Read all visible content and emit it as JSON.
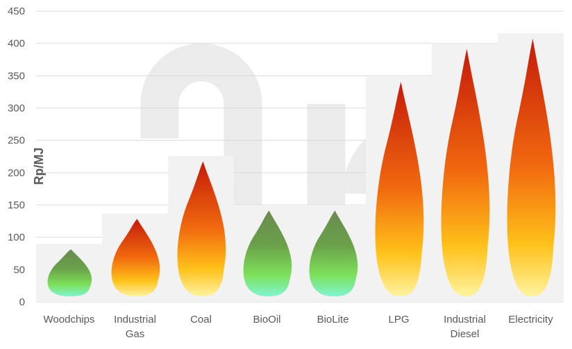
{
  "chart_data": {
    "type": "bar",
    "title": "",
    "xlabel": "",
    "ylabel": "Rp/MJ",
    "ylim": [
      0,
      450
    ],
    "yticks": [
      0,
      50,
      100,
      150,
      200,
      250,
      300,
      350,
      400,
      450
    ],
    "grid": true,
    "categories": [
      [
        "Woodchips"
      ],
      [
        "Industrial",
        "Gas"
      ],
      [
        "Coal"
      ],
      [
        "BioOil"
      ],
      [
        "BioLite"
      ],
      [
        "LPG"
      ],
      [
        "Industrial",
        "Diesel"
      ],
      [
        "Electricity"
      ]
    ],
    "values": [
      90,
      137,
      226,
      150,
      150,
      349,
      400,
      416
    ],
    "flame_colors": [
      "green",
      "orange",
      "orange",
      "green",
      "green",
      "orange",
      "orange",
      "orange"
    ],
    "colors": {
      "bar": "#f2f2f2",
      "grid": "#d9d9d9",
      "axis_text": "#595959",
      "watermark": "#e6e6e6"
    }
  }
}
